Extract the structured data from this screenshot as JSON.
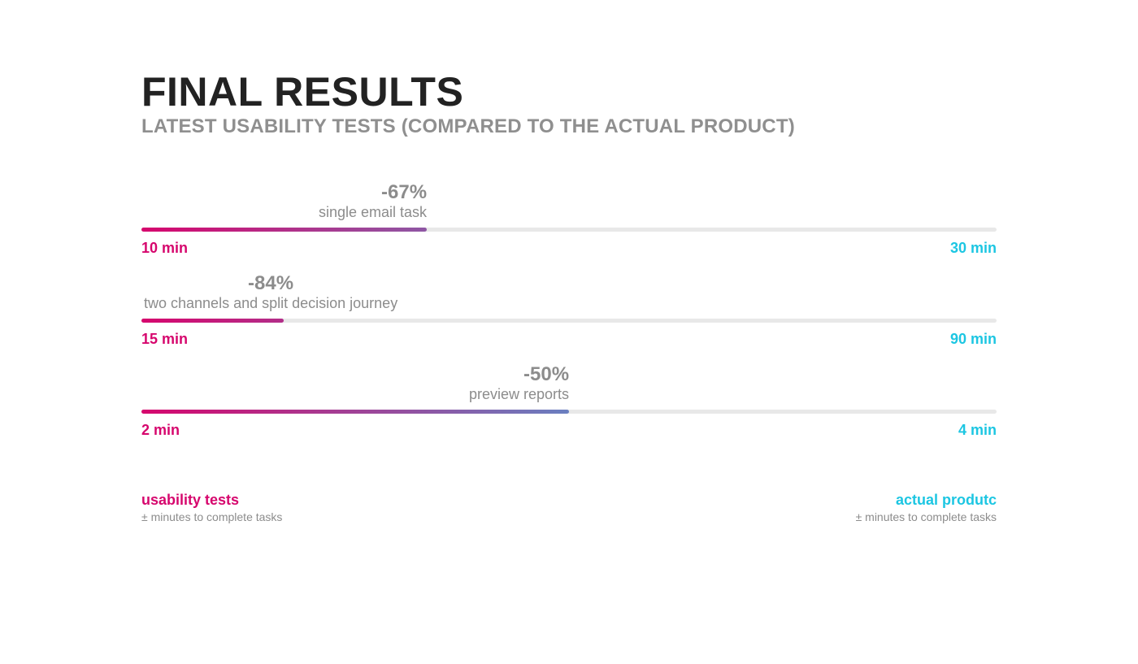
{
  "colors": {
    "usability": "#d6066d",
    "actual": "#1cc6e2",
    "gradient_end": "#6a7fc0",
    "track": "#e8e8e8",
    "muted_text": "#8c8c8c",
    "heading": "#222222"
  },
  "chart_data": {
    "type": "bar",
    "title": "FINAL RESULTS",
    "subtitle": "LATEST USABILITY TESTS (COMPARED TO THE ACTUAL PRODUCT)",
    "tasks": [
      {
        "name": "single email task",
        "change_label": "-67%",
        "usability_label": "10 min",
        "actual_label": "30 min",
        "usability_minutes": 10,
        "actual_minutes": 30
      },
      {
        "name": "two channels and split decision journey",
        "change_label": "-84%",
        "usability_label": "15 min",
        "actual_label": "90 min",
        "usability_minutes": 15,
        "actual_minutes": 90
      },
      {
        "name": "preview reports",
        "change_label": "-50%",
        "usability_label": "2 min",
        "actual_label": "4 min",
        "usability_minutes": 2,
        "actual_minutes": 4
      }
    ],
    "legend": {
      "usability": {
        "title": "usability tests",
        "note": "± minutes to complete tasks"
      },
      "actual": {
        "title": "actual produtc",
        "note": "± minutes to complete tasks"
      }
    }
  }
}
